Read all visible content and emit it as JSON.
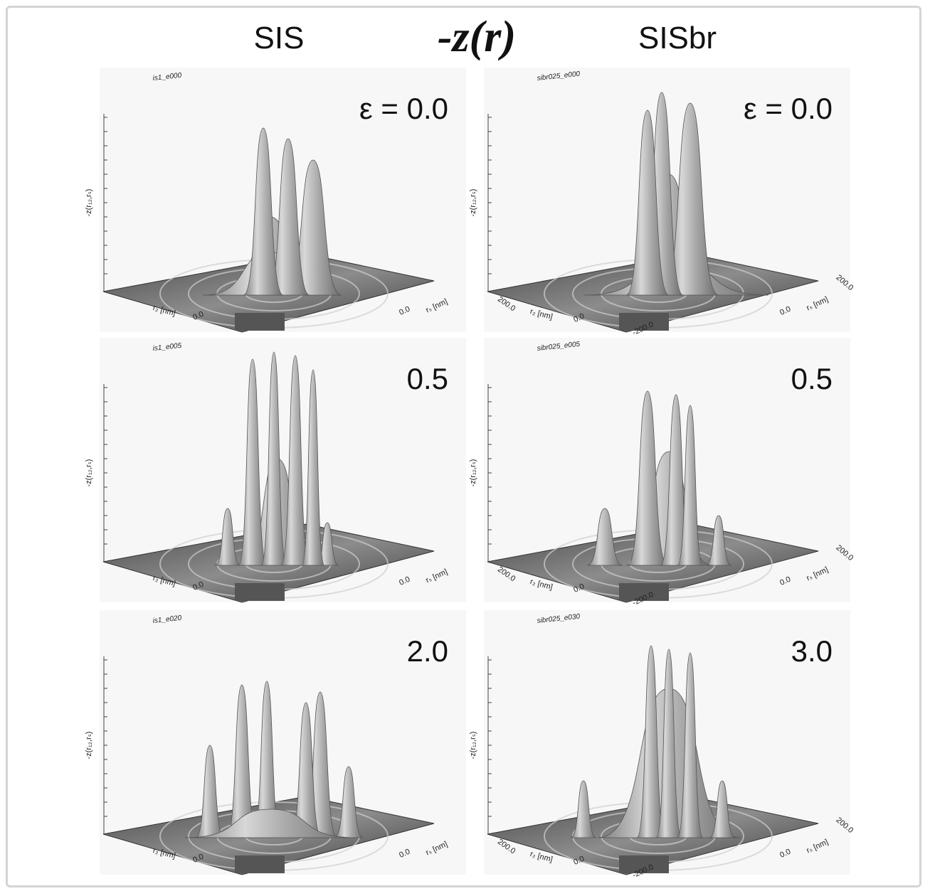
{
  "header": {
    "left": "SIS",
    "center": "-z(r)",
    "right": "SISbr"
  },
  "panels": [
    {
      "file": "is1_e000",
      "epsilon": "ε =  0.0",
      "z_label": "-z(r₁₂,rₛ)",
      "ticks": [
        "r₂ [nm]",
        "0.0",
        "0.0",
        "rₛ [nm]"
      ]
    },
    {
      "file": "sibr025_e000",
      "epsilon": "ε =  0.0",
      "z_label": "-z(r₁₂,rₛ)",
      "ticks": [
        "200.0",
        "r₂ [nm]",
        "0.0",
        "-200.0",
        "0.0",
        "rₛ [nm]",
        "200.0"
      ]
    },
    {
      "file": "is1_e005",
      "epsilon": "0.5",
      "z_label": "-z(r₁₂,rₛ)",
      "ticks": [
        "r₂ [nm]",
        "0.0",
        "0.0",
        "rₛ [nm]"
      ]
    },
    {
      "file": "sibr025_e005",
      "epsilon": "0.5",
      "z_label": "-z(r₁₂,rₛ)",
      "ticks": [
        "200.0",
        "r₂ [nm]",
        "0.0",
        "-200.0",
        "0.0",
        "rₛ [nm]",
        "200.0"
      ]
    },
    {
      "file": "is1_e020",
      "epsilon": "2.0",
      "z_label": "-z(r₁₂,rₛ)",
      "ticks": [
        "r₂ [nm]",
        "0.0",
        "0.0",
        "rₛ [nm]"
      ]
    },
    {
      "file": "sibr025_e030",
      "epsilon": "3.0",
      "z_label": "-z(r₁₂,rₛ)",
      "ticks": [
        "200.0",
        "r₂ [nm]",
        "0.0",
        "-200.0",
        "0.0",
        "rₛ [nm]",
        "200.0"
      ]
    }
  ]
}
